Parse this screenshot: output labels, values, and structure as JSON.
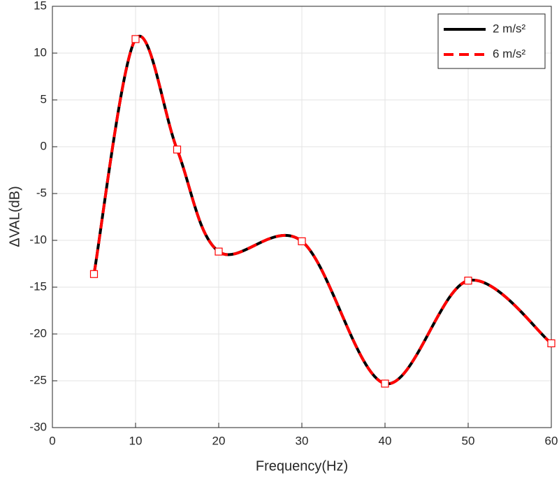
{
  "chart_data": {
    "type": "line",
    "xlabel": "Frequency(Hz)",
    "ylabel": "ΔVAL(dB)",
    "x": [
      5,
      10,
      15,
      20,
      30,
      40,
      50,
      60
    ],
    "series": [
      {
        "name": "2 m/s²",
        "color": "#000000",
        "dash": false,
        "marker": null,
        "values": [
          -13.6,
          11.5,
          -0.3,
          -11.2,
          -10.1,
          -25.3,
          -14.3,
          -21.0
        ]
      },
      {
        "name": "6 m/s²",
        "color": "#ff0000",
        "dash": true,
        "marker": "square",
        "values": [
          -13.6,
          11.5,
          -0.3,
          -11.2,
          -10.1,
          -25.3,
          -14.3,
          -21.0
        ]
      }
    ],
    "xlim": [
      0,
      60
    ],
    "xticks": [
      0,
      10,
      20,
      30,
      40,
      50,
      60
    ],
    "ylim": [
      -30,
      15
    ],
    "yticks": [
      -30,
      -25,
      -20,
      -15,
      -10,
      -5,
      0,
      5,
      10,
      15
    ],
    "grid": true,
    "legend": "upper right"
  }
}
